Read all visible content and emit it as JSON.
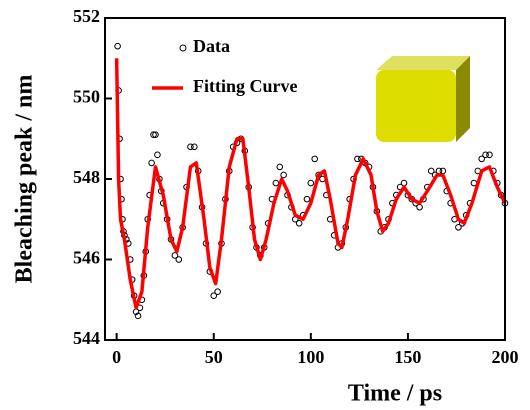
{
  "chart_data": {
    "type": "scatter",
    "x_label": "Time / ps",
    "y_label": "Bleaching peak / nm",
    "xlim": [
      -6,
      200
    ],
    "xticks": [
      0,
      50,
      100,
      150,
      200
    ],
    "ylim": [
      544,
      552
    ],
    "yticks": [
      544,
      546,
      548,
      550,
      552
    ],
    "series": [
      {
        "name": "Data",
        "type": "scatter",
        "color": "#000000",
        "x": [
          0.5,
          1,
          1.5,
          2,
          2.5,
          3,
          3.5,
          4,
          5,
          6,
          7,
          8,
          9,
          10,
          11,
          12,
          13,
          14,
          15,
          16,
          17,
          18,
          19,
          20,
          21,
          22,
          23,
          24,
          26,
          28,
          30,
          32,
          34,
          36,
          38,
          40,
          42,
          44,
          46,
          48,
          50,
          52,
          54,
          56,
          58,
          60,
          62,
          64,
          66,
          68,
          70,
          72,
          74,
          76,
          78,
          80,
          82,
          84,
          86,
          88,
          90,
          92,
          94,
          96,
          98,
          100,
          102,
          104,
          106,
          108,
          110,
          112,
          114,
          116,
          118,
          120,
          122,
          124,
          126,
          128,
          130,
          132,
          134,
          136,
          138,
          140,
          142,
          144,
          146,
          148,
          150,
          152,
          154,
          156,
          158,
          160,
          162,
          164,
          166,
          168,
          170,
          172,
          174,
          176,
          178,
          180,
          182,
          184,
          186,
          188,
          190,
          192,
          194,
          196,
          198,
          200
        ],
        "values": [
          551.3,
          550.2,
          549,
          548,
          547.5,
          547,
          546.7,
          546.6,
          546.5,
          546.4,
          546,
          545.5,
          545.1,
          544.7,
          544.6,
          544.8,
          545,
          545.6,
          546.2,
          547,
          547.6,
          548.4,
          549.1,
          549.1,
          548.6,
          548,
          547.7,
          547.4,
          547,
          546.5,
          546.1,
          546,
          546.8,
          547.8,
          548.8,
          548.8,
          548.2,
          547.3,
          546.4,
          545.7,
          545.1,
          545.2,
          546.4,
          547.5,
          548.2,
          548.8,
          548.9,
          549,
          548.7,
          547.8,
          546.8,
          546.3,
          546.1,
          546.3,
          546.9,
          547.5,
          547.9,
          548.3,
          548.1,
          547.6,
          547.3,
          547,
          546.9,
          547.1,
          547.5,
          547.9,
          548.5,
          548.1,
          548,
          547.6,
          547,
          546.6,
          546.3,
          546.4,
          546.8,
          547.5,
          548,
          548.5,
          548.5,
          548.4,
          548.3,
          547.8,
          547.2,
          546.7,
          546.8,
          547,
          547.4,
          547.6,
          547.8,
          547.9,
          547.6,
          547.5,
          547.4,
          547.3,
          547.5,
          547.8,
          548.2,
          548.1,
          548.2,
          548.2,
          547.7,
          547.4,
          547,
          546.8,
          546.9,
          547.1,
          547.4,
          547.9,
          548.2,
          548.5,
          548.6,
          548.6,
          548.2,
          547.9,
          547.6,
          547.4
        ]
      },
      {
        "name": "Fitting Curve",
        "type": "line",
        "color": "#ff0000",
        "x": [
          0,
          1,
          2,
          4,
          7,
          10,
          13,
          16,
          20,
          24,
          28,
          31,
          34,
          38,
          41,
          45,
          48,
          51,
          54,
          58,
          62,
          65,
          68,
          71,
          74,
          77,
          81,
          85,
          88,
          92,
          96,
          100,
          104,
          107,
          110,
          114,
          116,
          119,
          123,
          127,
          131,
          134,
          137,
          140,
          144,
          148,
          152,
          156,
          160,
          165,
          168,
          172,
          176,
          179,
          183,
          188,
          192,
          196,
          200
        ],
        "values": [
          551,
          548,
          547,
          546.5,
          545.5,
          544.8,
          545.2,
          546.8,
          548.3,
          547.6,
          546.5,
          546.2,
          546.8,
          548.3,
          548.4,
          547,
          545.8,
          545.4,
          546.5,
          548.3,
          549,
          549,
          547.8,
          546.5,
          546,
          546.5,
          547.4,
          548,
          547.7,
          547.1,
          547,
          547.4,
          548.1,
          548.2,
          547.5,
          546.4,
          546.3,
          547,
          548.1,
          548.5,
          548.1,
          547.2,
          546.7,
          546.9,
          547.5,
          547.8,
          547.5,
          547.4,
          547.7,
          548.1,
          548.1,
          547.6,
          547,
          546.9,
          547.4,
          548.2,
          548.3,
          547.8,
          547.4
        ]
      }
    ]
  }
}
